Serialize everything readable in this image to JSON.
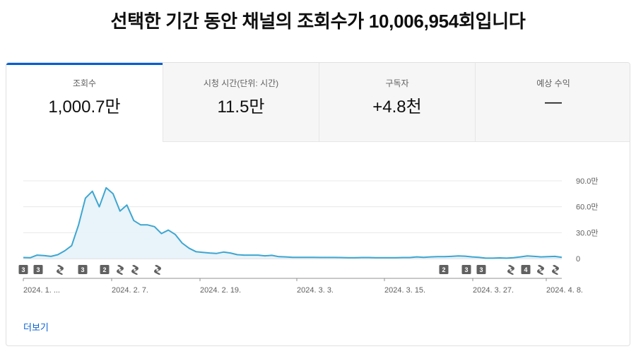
{
  "headline": {
    "prefix": "선택한 기간 동안 채널의 조회수가 ",
    "count": "10,006,954",
    "suffix": "회입니다"
  },
  "tabs": [
    {
      "label": "조회수",
      "value": "1,000.7만",
      "active": true
    },
    {
      "label": "시청 시간(단위: 시간)",
      "value": "11.5만",
      "active": false
    },
    {
      "label": "구독자",
      "value": "+4.8천",
      "active": false
    },
    {
      "label": "예상 수익",
      "value": "—",
      "active": false
    }
  ],
  "more_label": "더보기",
  "colors": {
    "line": "#3ea6d0",
    "fill": "#e6f2f9",
    "accent": "#065fd4",
    "marker": "#606060"
  },
  "markers": [
    {
      "type": "count",
      "label": "3"
    },
    {
      "type": "count",
      "label": "3"
    },
    {
      "type": "shorts-icon"
    },
    {
      "type": "count",
      "label": "3"
    },
    {
      "type": "count",
      "label": "2"
    },
    {
      "type": "shorts-icon"
    },
    {
      "type": "shorts-icon"
    },
    {
      "type": "shorts-icon"
    },
    {
      "type": "count",
      "label": "2"
    },
    {
      "type": "count",
      "label": "3"
    },
    {
      "type": "count",
      "label": "3"
    },
    {
      "type": "shorts-icon"
    },
    {
      "type": "count",
      "label": "4"
    },
    {
      "type": "shorts-icon"
    },
    {
      "type": "shorts-icon"
    }
  ],
  "chart_data": {
    "type": "area",
    "ylim": [
      0,
      900000
    ],
    "y_ticks": [
      {
        "value": 0,
        "label": "0"
      },
      {
        "value": 300000,
        "label": "30.0만"
      },
      {
        "value": 600000,
        "label": "60.0만"
      },
      {
        "value": 900000,
        "label": "90.0만"
      }
    ],
    "x_ticks": [
      "2024. 1. ...",
      "2024. 2. 7.",
      "2024. 2. 19.",
      "2024. 3. 3.",
      "2024. 3. 15.",
      "2024. 3. 27.",
      "2024. 4. 8."
    ],
    "grid": true,
    "series": [
      {
        "values": [
          12000,
          10000,
          40000,
          35000,
          25000,
          45000,
          90000,
          150000,
          390000,
          700000,
          780000,
          600000,
          820000,
          750000,
          550000,
          620000,
          440000,
          390000,
          390000,
          370000,
          290000,
          330000,
          280000,
          180000,
          120000,
          80000,
          72000,
          65000,
          60000,
          75000,
          65000,
          45000,
          40000,
          40000,
          40000,
          32000,
          38000,
          22000,
          20000,
          15000,
          15000,
          15000,
          14000,
          13000,
          13000,
          13000,
          12000,
          10000,
          10000,
          12000,
          12000,
          11000,
          11000,
          11000,
          11000,
          12000,
          12000,
          20000,
          15000,
          20000,
          22000,
          22000,
          25000,
          30000,
          28000,
          20000,
          15000,
          5000,
          5000,
          8000,
          5000,
          10000,
          20000,
          30000,
          25000,
          20000,
          22000,
          25000,
          15000
        ]
      }
    ]
  }
}
